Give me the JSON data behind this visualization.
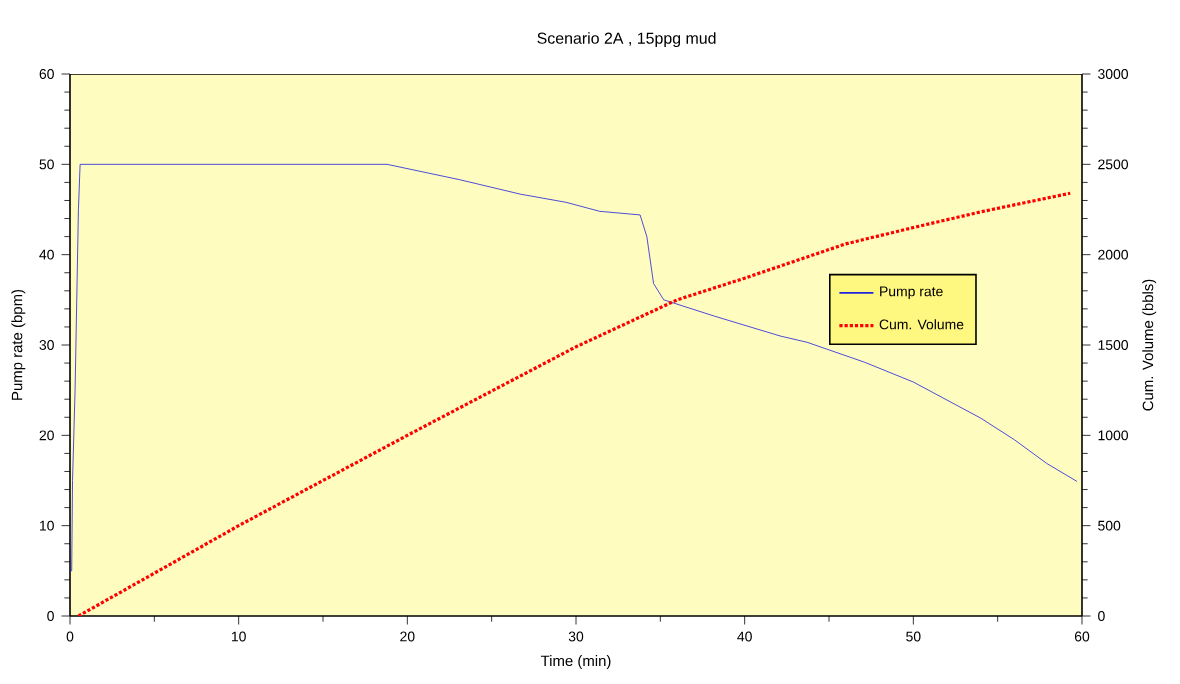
{
  "chart_data": {
    "type": "line",
    "title": "Scenario 2A , 15ppg mud",
    "xlabel": "Time (min)",
    "ylabel": "Pump rate (bpm)",
    "y2label": "Cum. Volume (bbls)",
    "xlim": [
      0,
      60
    ],
    "xticks": [
      0,
      10,
      20,
      30,
      40,
      50,
      60
    ],
    "ylim": [
      0,
      60
    ],
    "yticks": [
      0,
      10,
      20,
      30,
      40,
      50,
      60
    ],
    "y2lim": [
      0,
      3000
    ],
    "y2ticks": [
      0,
      500,
      1000,
      1500,
      2000,
      2500,
      3000
    ],
    "grid": false,
    "legend": "right",
    "marker": "none",
    "series": [
      {
        "name": "Pump rate",
        "color": "#2020e0",
        "line_style": "solid",
        "x": [
          0,
          0.1,
          0.15,
          0.3,
          0.4,
          0.5,
          0.6,
          18.8,
          23.1,
          26.7,
          29.4,
          31.4,
          33.8,
          34.2,
          34.6,
          35.2,
          38.2,
          42.1,
          43.7,
          47.1,
          50.0,
          54.0,
          56.0,
          57.9,
          59.7
        ],
        "values": [
          5,
          5,
          15,
          25,
          35,
          45,
          50,
          50,
          48.3,
          46.7,
          45.8,
          44.8,
          44.4,
          42,
          36.8,
          35,
          33.2,
          31.0,
          30.3,
          28.1,
          25.9,
          21.9,
          19.5,
          16.9,
          14.9
        ]
      },
      {
        "name": "Cum. Volume",
        "color": "#ff0000",
        "line_style": "dotted",
        "axis": "y2",
        "x": [
          0.5,
          10,
          20,
          30,
          36,
          40,
          46,
          50,
          54,
          59.3
        ],
        "values": [
          0,
          500,
          1000,
          1490,
          1750,
          1870,
          2060,
          2150,
          2237,
          2340
        ]
      }
    ]
  }
}
